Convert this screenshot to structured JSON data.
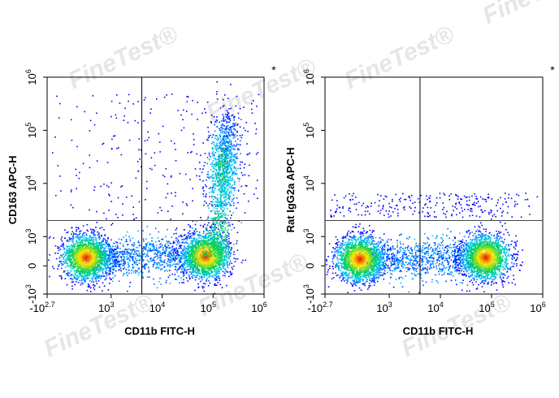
{
  "watermark": {
    "text": "FineTest",
    "mark": "®"
  },
  "chart_data": [
    {
      "type": "scatter",
      "subtype": "flow-cytometry-density-plot",
      "title": "",
      "asterisk": "*",
      "xlabel": "CD11b FITC-H",
      "ylabel": "CD163 APC-H",
      "scale": "biexponential",
      "x_ticks": [
        {
          "value": -501,
          "base": "-10",
          "exp": "2.7"
        },
        {
          "value": 1000,
          "base": "10",
          "exp": "3"
        },
        {
          "value": 10000,
          "base": "10",
          "exp": "4"
        },
        {
          "value": 100000,
          "base": "10",
          "exp": "5"
        },
        {
          "value": 1000000,
          "base": "10",
          "exp": "6"
        }
      ],
      "y_ticks": [
        {
          "value": -1000,
          "base": "-10",
          "exp": "3"
        },
        {
          "value": 0,
          "base": "0",
          "exp": ""
        },
        {
          "value": 1000,
          "base": "10",
          "exp": "3"
        },
        {
          "value": 10000,
          "base": "10",
          "exp": "4"
        },
        {
          "value": 100000,
          "base": "10",
          "exp": "5"
        },
        {
          "value": 1000000,
          "base": "10",
          "exp": "6"
        }
      ],
      "xlim": [
        -501,
        1000000
      ],
      "ylim": [
        -1000,
        1000000
      ],
      "quadrant_gate": {
        "x": 4000,
        "y": 2000
      },
      "populations": [
        {
          "name": "",
          "x_center": 400,
          "y_center": 300,
          "density": "high"
        },
        {
          "name": "",
          "x_center": 70000,
          "y_center": 350,
          "density": "high"
        },
        {
          "name": "",
          "x_center": 150000,
          "y_center": 20000,
          "density": "medium"
        }
      ]
    },
    {
      "type": "scatter",
      "subtype": "flow-cytometry-density-plot",
      "title": "",
      "asterisk": "*",
      "xlabel": "CD11b FITC-H",
      "ylabel": "Rat IgG2a APC-H",
      "scale": "biexponential",
      "x_ticks": [
        {
          "value": -501,
          "base": "-10",
          "exp": "2.7"
        },
        {
          "value": 1000,
          "base": "10",
          "exp": "3"
        },
        {
          "value": 10000,
          "base": "10",
          "exp": "4"
        },
        {
          "value": 100000,
          "base": "10",
          "exp": "5"
        },
        {
          "value": 1000000,
          "base": "10",
          "exp": "6"
        }
      ],
      "y_ticks": [
        {
          "value": -1000,
          "base": "-10",
          "exp": "3"
        },
        {
          "value": 0,
          "base": "0",
          "exp": ""
        },
        {
          "value": 1000,
          "base": "10",
          "exp": "3"
        },
        {
          "value": 10000,
          "base": "10",
          "exp": "4"
        },
        {
          "value": 100000,
          "base": "10",
          "exp": "5"
        },
        {
          "value": 1000000,
          "base": "10",
          "exp": "6"
        }
      ],
      "xlim": [
        -501,
        1000000
      ],
      "ylim": [
        -1000,
        1000000
      ],
      "quadrant_gate": {
        "x": 4000,
        "y": 2000
      },
      "populations": [
        {
          "name": "",
          "x_center": 300,
          "y_center": 250,
          "density": "high"
        },
        {
          "name": "",
          "x_center": 75000,
          "y_center": 300,
          "density": "high"
        }
      ]
    }
  ]
}
